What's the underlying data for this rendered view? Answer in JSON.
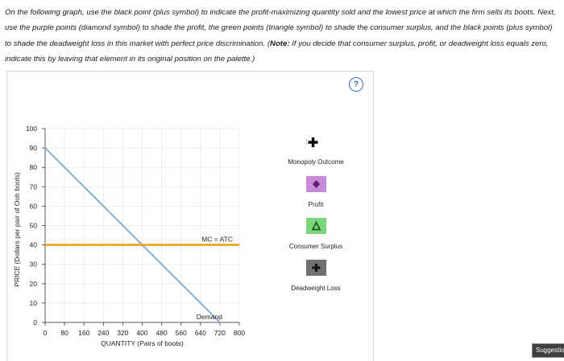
{
  "instructions": {
    "text_before_note": "On the following graph, use the black point (plus symbol) to indicate the profit-maximizing quantity sold and the lowest price at which the firm sells its boots. Next, use the purple points (diamond symbol) to shade the profit, the green points (triangle symbol) to shade the consumer surplus, and the black points (plus symbol) to shade the deadweight loss in this market with perfect price discrimination. (",
    "note_label": "Note:",
    "text_after_note": " If you decide that consumer surplus, profit, or deadweight loss equals zero, indicate this by leaving that element in its original position on the palette.)"
  },
  "help": {
    "symbol": "?",
    "color": "#3b6ec2"
  },
  "chart_data": {
    "type": "line",
    "xlabel": "QUANTITY (Pairs of boots)",
    "ylabel": "PRICE (Dollars per pair of Ooh boots)",
    "xlim": [
      0,
      800
    ],
    "ylim": [
      0,
      100
    ],
    "x_ticks": [
      0,
      80,
      160,
      240,
      320,
      400,
      480,
      560,
      640,
      720,
      800
    ],
    "y_ticks": [
      0,
      10,
      20,
      30,
      40,
      50,
      60,
      70,
      80,
      90,
      100
    ],
    "series": [
      {
        "name": "Demand",
        "color": "#8fb3da",
        "x": [
          0,
          720
        ],
        "y": [
          90,
          0
        ]
      },
      {
        "name": "MC = ATC",
        "color": "#f0a21a",
        "x": [
          0,
          800
        ],
        "y": [
          40,
          40
        ]
      }
    ]
  },
  "palette": [
    {
      "label": "Monopoly Outcome",
      "icon": "plus-icon",
      "color": "#000000"
    },
    {
      "label": "Profit",
      "icon": "diamond-icon",
      "color": "#c78ad9"
    },
    {
      "label": "Consumer Surplus",
      "icon": "triangle-icon",
      "color": "#7cd67c"
    },
    {
      "label": "Deadweight Loss",
      "icon": "plus-icon",
      "color": "#707070"
    }
  ],
  "suggest_button": {
    "label": "Suggestio"
  }
}
